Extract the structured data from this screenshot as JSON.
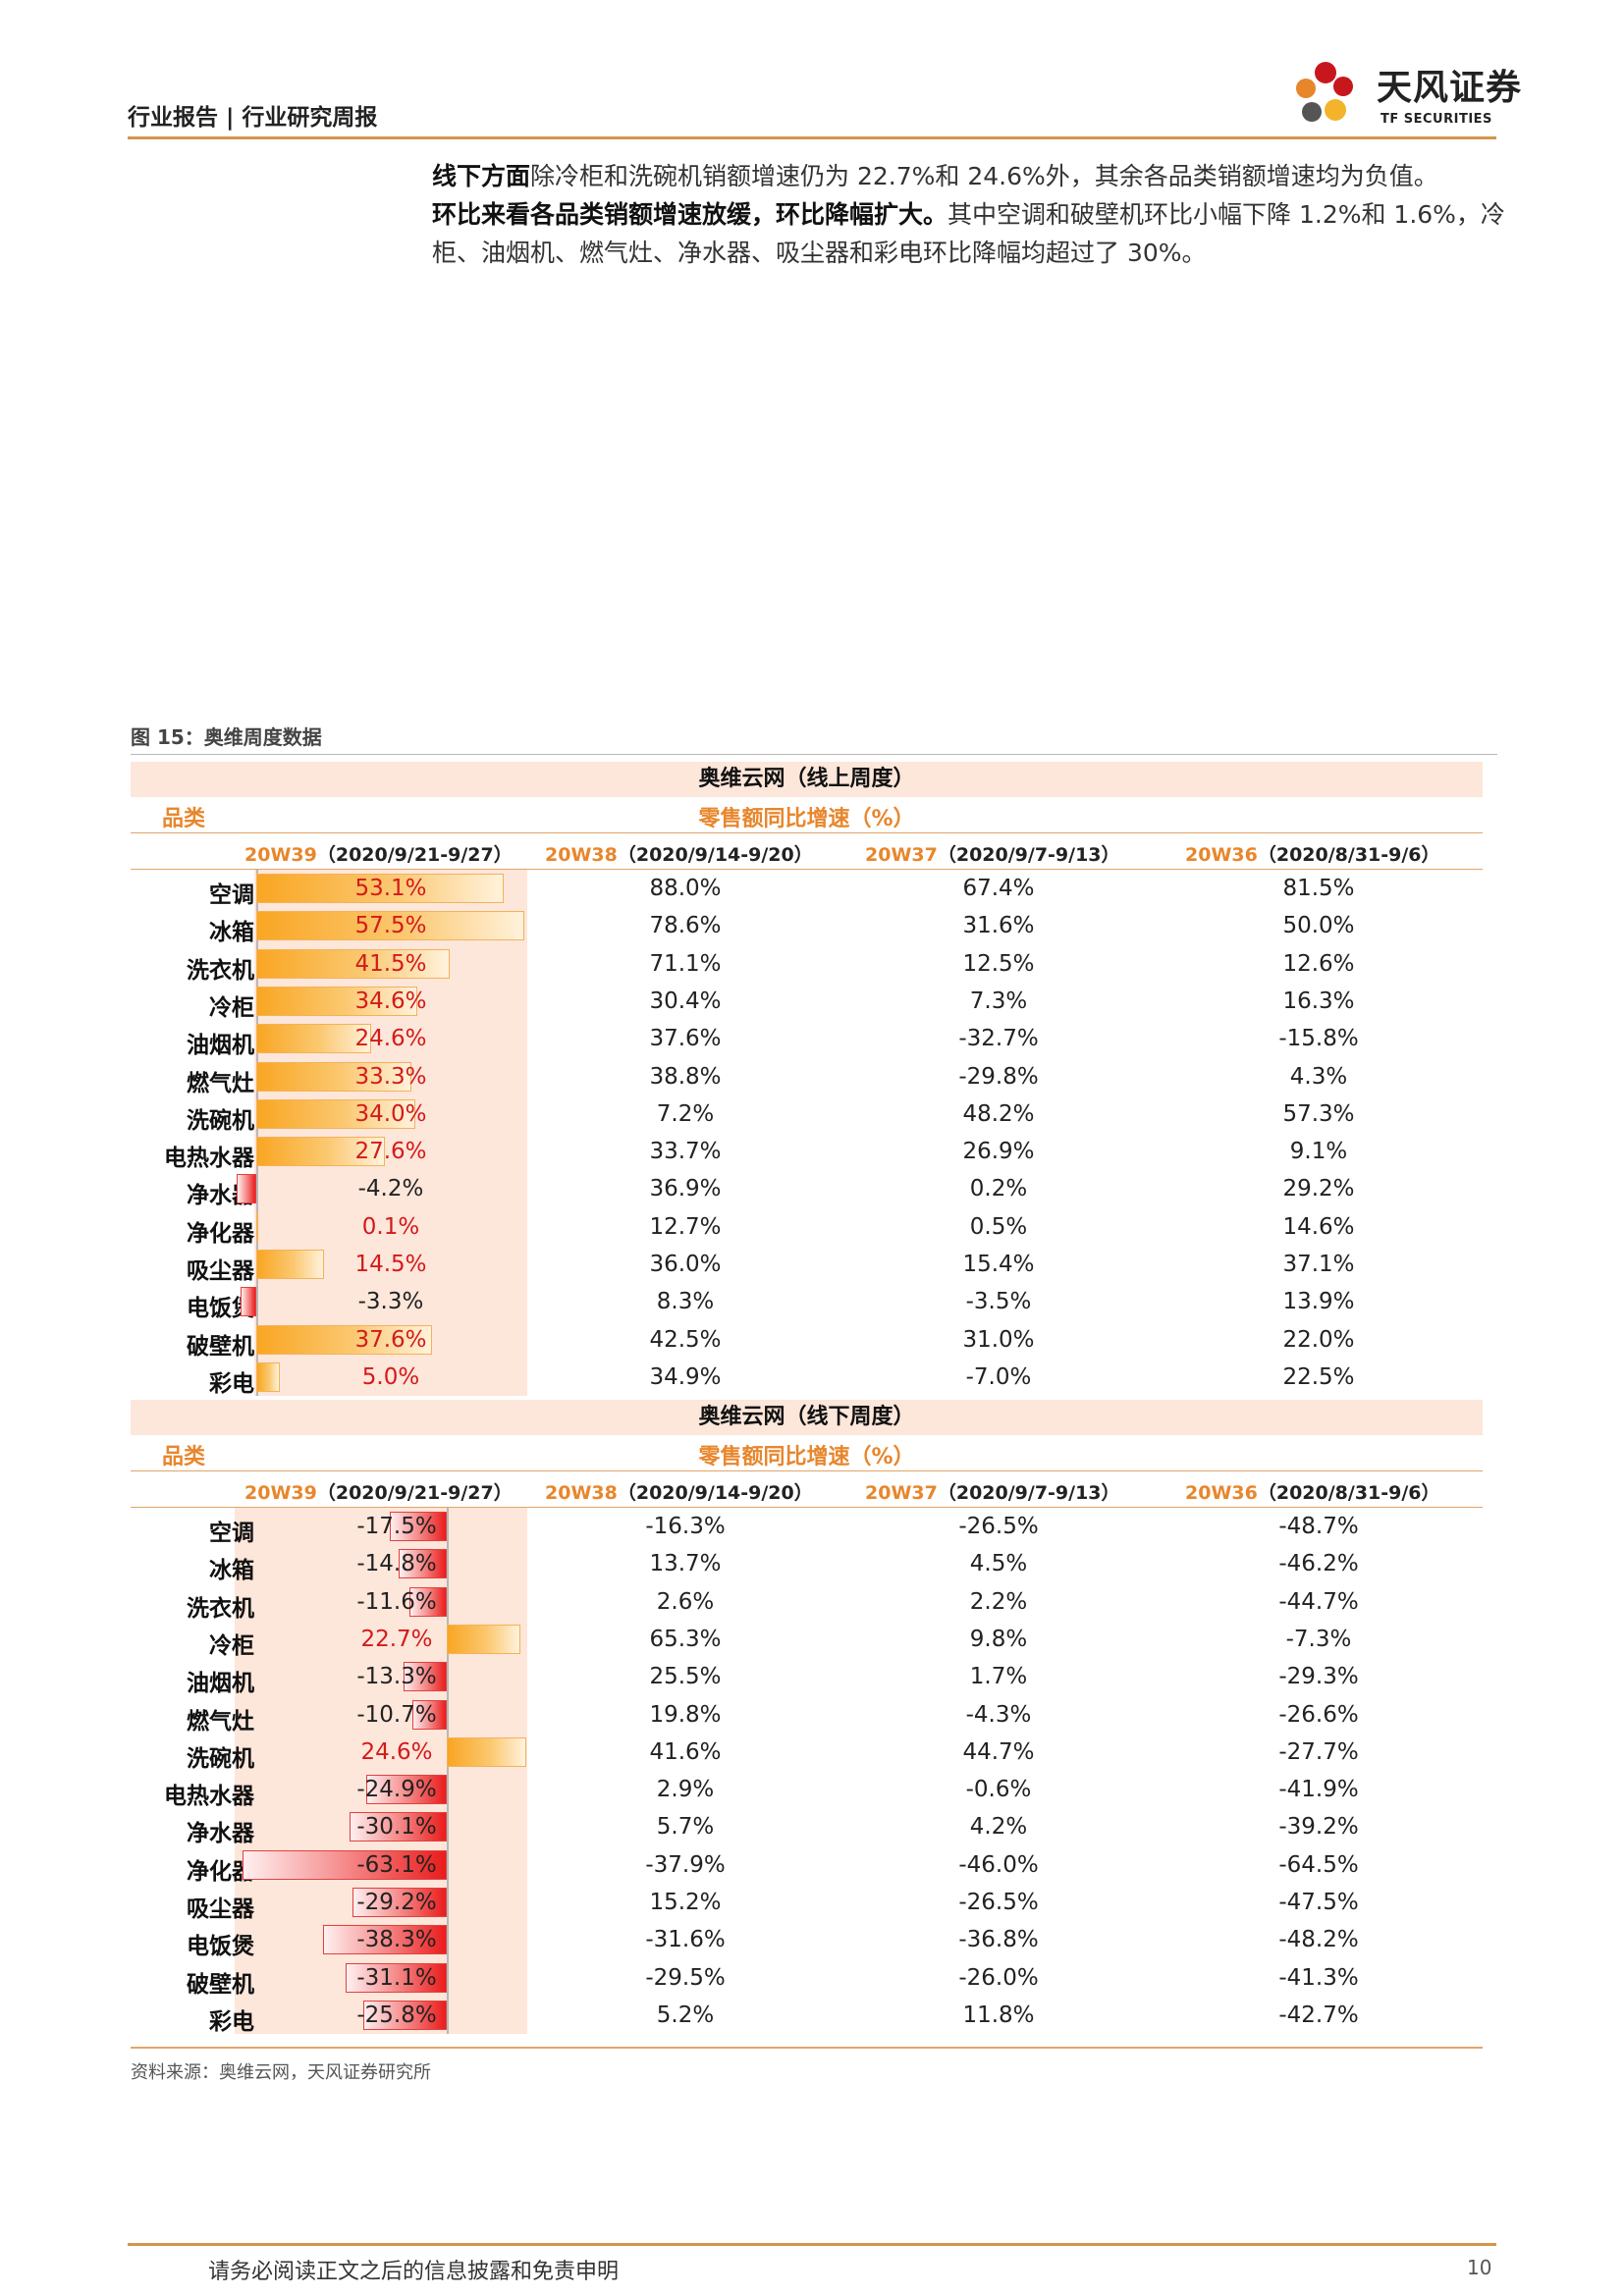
{
  "header": {
    "title": "行业报告 | 行业研究周报"
  },
  "logo": {
    "cn": "天风证券",
    "en": "TF SECURITIES"
  },
  "paragraph": {
    "bold1": "线下方面",
    "text1": "除冷柜和洗碗机销额增速仍为 22.7%和 24.6%外，其余各品类销额增速均为负值。",
    "bold2": "环比来看各品类销额增速放缓，环比降幅扩大。",
    "text2": "其中空调和破壁机环比小幅下降 1.2%和 1.6%，冷柜、油烟机、燃气灶、净水器、吸尘器和彩电环比降幅均超过了 30%。"
  },
  "figure": {
    "caption": "图 15：奥维周度数据"
  },
  "table_online": {
    "title": "奥维云网（线上周度）",
    "cat_label": "品类",
    "metric_label": "零售额同比增速（%）",
    "weeks": [
      {
        "code": "20W39",
        "range": "（2020/9/21-9/27）"
      },
      {
        "code": "20W38",
        "range": "（2020/9/14-9/20）"
      },
      {
        "code": "20W37",
        "range": "（2020/9/7-9/13）"
      },
      {
        "code": "20W36",
        "range": "（2020/8/31-9/6）"
      }
    ],
    "rows": [
      {
        "name": "空调",
        "w39": "53.1%",
        "w39v": 53.1,
        "w38": "88.0%",
        "w37": "67.4%",
        "w36": "81.5%"
      },
      {
        "name": "冰箱",
        "w39": "57.5%",
        "w39v": 57.5,
        "w38": "78.6%",
        "w37": "31.6%",
        "w36": "50.0%"
      },
      {
        "name": "洗衣机",
        "w39": "41.5%",
        "w39v": 41.5,
        "w38": "71.1%",
        "w37": "12.5%",
        "w36": "12.6%"
      },
      {
        "name": "冷柜",
        "w39": "34.6%",
        "w39v": 34.6,
        "w38": "30.4%",
        "w37": "7.3%",
        "w36": "16.3%"
      },
      {
        "name": "油烟机",
        "w39": "24.6%",
        "w39v": 24.6,
        "w38": "37.6%",
        "w37": "-32.7%",
        "w36": "-15.8%"
      },
      {
        "name": "燃气灶",
        "w39": "33.3%",
        "w39v": 33.3,
        "w38": "38.8%",
        "w37": "-29.8%",
        "w36": "4.3%"
      },
      {
        "name": "洗碗机",
        "w39": "34.0%",
        "w39v": 34.0,
        "w38": "7.2%",
        "w37": "48.2%",
        "w36": "57.3%"
      },
      {
        "name": "电热水器",
        "w39": "27.6%",
        "w39v": 27.6,
        "w38": "33.7%",
        "w37": "26.9%",
        "w36": "9.1%"
      },
      {
        "name": "净水器",
        "w39": "-4.2%",
        "w39v": -4.2,
        "w38": "36.9%",
        "w37": "0.2%",
        "w36": "29.2%"
      },
      {
        "name": "净化器",
        "w39": "0.1%",
        "w39v": 0.1,
        "w38": "12.7%",
        "w37": "0.5%",
        "w36": "14.6%"
      },
      {
        "name": "吸尘器",
        "w39": "14.5%",
        "w39v": 14.5,
        "w38": "36.0%",
        "w37": "15.4%",
        "w36": "37.1%"
      },
      {
        "name": "电饭煲",
        "w39": "-3.3%",
        "w39v": -3.3,
        "w38": "8.3%",
        "w37": "-3.5%",
        "w36": "13.9%"
      },
      {
        "name": "破壁机",
        "w39": "37.6%",
        "w39v": 37.6,
        "w38": "42.5%",
        "w37": "31.0%",
        "w36": "22.0%"
      },
      {
        "name": "彩电",
        "w39": "5.0%",
        "w39v": 5.0,
        "w38": "34.9%",
        "w37": "-7.0%",
        "w36": "22.5%"
      }
    ]
  },
  "table_offline": {
    "title": "奥维云网（线下周度）",
    "cat_label": "品类",
    "metric_label": "零售额同比增速（%）",
    "weeks": [
      {
        "code": "20W39",
        "range": "（2020/9/21-9/27）"
      },
      {
        "code": "20W38",
        "range": "（2020/9/14-9/20）"
      },
      {
        "code": "20W37",
        "range": "（2020/9/7-9/13）"
      },
      {
        "code": "20W36",
        "range": "（2020/8/31-9/6）"
      }
    ],
    "rows": [
      {
        "name": "空调",
        "w39": "-17.5%",
        "w39v": -17.5,
        "w38": "-16.3%",
        "w37": "-26.5%",
        "w36": "-48.7%"
      },
      {
        "name": "冰箱",
        "w39": "-14.8%",
        "w39v": -14.8,
        "w38": "13.7%",
        "w37": "4.5%",
        "w36": "-46.2%"
      },
      {
        "name": "洗衣机",
        "w39": "-11.6%",
        "w39v": -11.6,
        "w38": "2.6%",
        "w37": "2.2%",
        "w36": "-44.7%"
      },
      {
        "name": "冷柜",
        "w39": "22.7%",
        "w39v": 22.7,
        "w38": "65.3%",
        "w37": "9.8%",
        "w36": "-7.3%"
      },
      {
        "name": "油烟机",
        "w39": "-13.3%",
        "w39v": -13.3,
        "w38": "25.5%",
        "w37": "1.7%",
        "w36": "-29.3%"
      },
      {
        "name": "燃气灶",
        "w39": "-10.7%",
        "w39v": -10.7,
        "w38": "19.8%",
        "w37": "-4.3%",
        "w36": "-26.6%"
      },
      {
        "name": "洗碗机",
        "w39": "24.6%",
        "w39v": 24.6,
        "w38": "41.6%",
        "w37": "44.7%",
        "w36": "-27.7%"
      },
      {
        "name": "电热水器",
        "w39": "-24.9%",
        "w39v": -24.9,
        "w38": "2.9%",
        "w37": "-0.6%",
        "w36": "-41.9%"
      },
      {
        "name": "净水器",
        "w39": "-30.1%",
        "w39v": -30.1,
        "w38": "5.7%",
        "w37": "4.2%",
        "w36": "-39.2%"
      },
      {
        "name": "净化器",
        "w39": "-63.1%",
        "w39v": -63.1,
        "w38": "-37.9%",
        "w37": "-46.0%",
        "w36": "-64.5%"
      },
      {
        "name": "吸尘器",
        "w39": "-29.2%",
        "w39v": -29.2,
        "w38": "15.2%",
        "w37": "-26.5%",
        "w36": "-47.5%"
      },
      {
        "name": "电饭煲",
        "w39": "-38.3%",
        "w39v": -38.3,
        "w38": "-31.6%",
        "w37": "-36.8%",
        "w36": "-48.2%"
      },
      {
        "name": "破壁机",
        "w39": "-31.1%",
        "w39v": -31.1,
        "w38": "-29.5%",
        "w37": "-26.0%",
        "w36": "-41.3%"
      },
      {
        "name": "彩电",
        "w39": "-25.8%",
        "w39v": -25.8,
        "w38": "5.2%",
        "w37": "11.8%",
        "w36": "-42.7%"
      }
    ]
  },
  "source": "资料来源：奥维云网，天风证券研究所",
  "footer": {
    "disclaimer": "请务必阅读正文之后的信息披露和免责申明",
    "page": "10"
  },
  "colors": {
    "accent": "#e8862c",
    "rule": "#d4954a",
    "band": "#fde6da",
    "bar_pos": "#f9a623",
    "bar_neg": "#ea1c1c",
    "text_red": "#d41a1a"
  }
}
